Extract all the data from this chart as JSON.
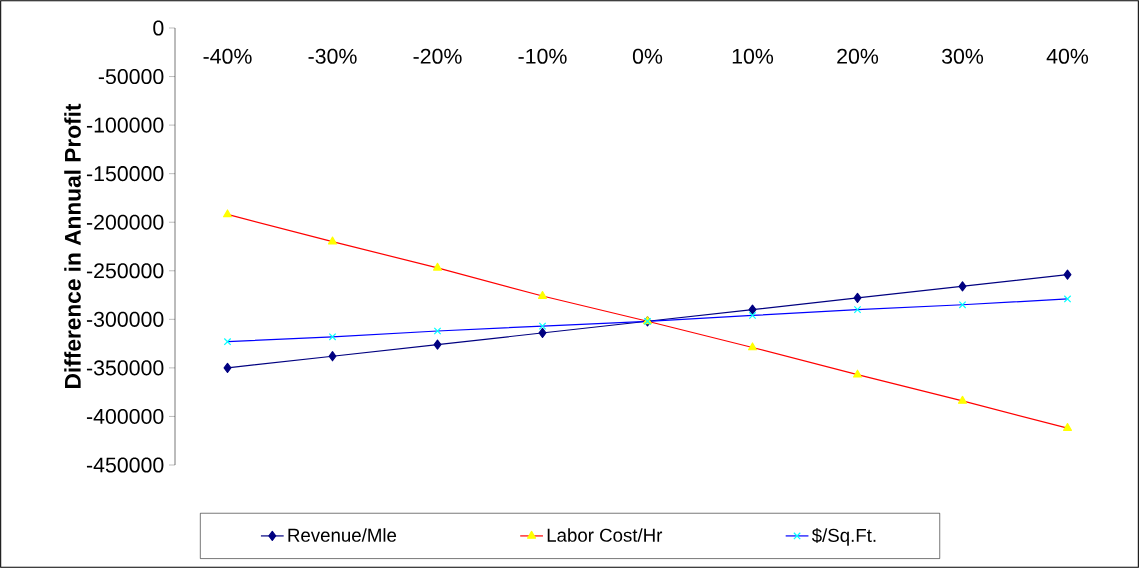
{
  "chart_data": {
    "type": "line",
    "ylabel": "Difference in Annual Profit",
    "categories": [
      "-40%",
      "-30%",
      "-20%",
      "-10%",
      "0%",
      "10%",
      "20%",
      "30%",
      "40%"
    ],
    "series": [
      {
        "name": "Revenue/Mle",
        "color": "#000080",
        "colors": [
          "#000080",
          "#000080",
          "#000080",
          "#000080",
          "#000080",
          "#000080",
          "#000080",
          "#000080",
          "#000080"
        ],
        "marker": "diamond",
        "values": [
          -350000,
          -338000,
          -326000,
          -314000,
          -302000,
          -290000,
          -278000,
          -266000,
          -254000
        ]
      },
      {
        "name": "Labor Cost/Hr",
        "color": "#ff0000",
        "colors": [
          "#ffff00",
          "#ffff00",
          "#ffff00",
          "#ffff00",
          "#ffff00",
          "#ffff00",
          "#ffff00",
          "#ffff00",
          "#ffff00"
        ],
        "marker": "triangle",
        "values": [
          -192000,
          -220000,
          -247000,
          -276000,
          -302000,
          -329000,
          -357000,
          -384000,
          -412000
        ]
      },
      {
        "name": "$/Sq.Ft.",
        "color": "#0000ff",
        "colors": [
          "#00ffff",
          "#00ffff",
          "#00ffff",
          "#00ffff",
          "#00ffff",
          "#00ffff",
          "#00ffff",
          "#00ffff",
          "#00ffff"
        ],
        "marker": "cross",
        "values": [
          -323000,
          -318000,
          -312000,
          -307000,
          -302000,
          -296000,
          -290000,
          -285000,
          -279000
        ]
      }
    ],
    "ylim": [
      -450000,
      0
    ],
    "yticks": [
      0,
      -50000,
      -100000,
      -150000,
      -200000,
      -250000,
      -300000,
      -350000,
      -400000,
      -450000
    ],
    "grid": false,
    "legend": "bottom",
    "line_style": "solid"
  }
}
